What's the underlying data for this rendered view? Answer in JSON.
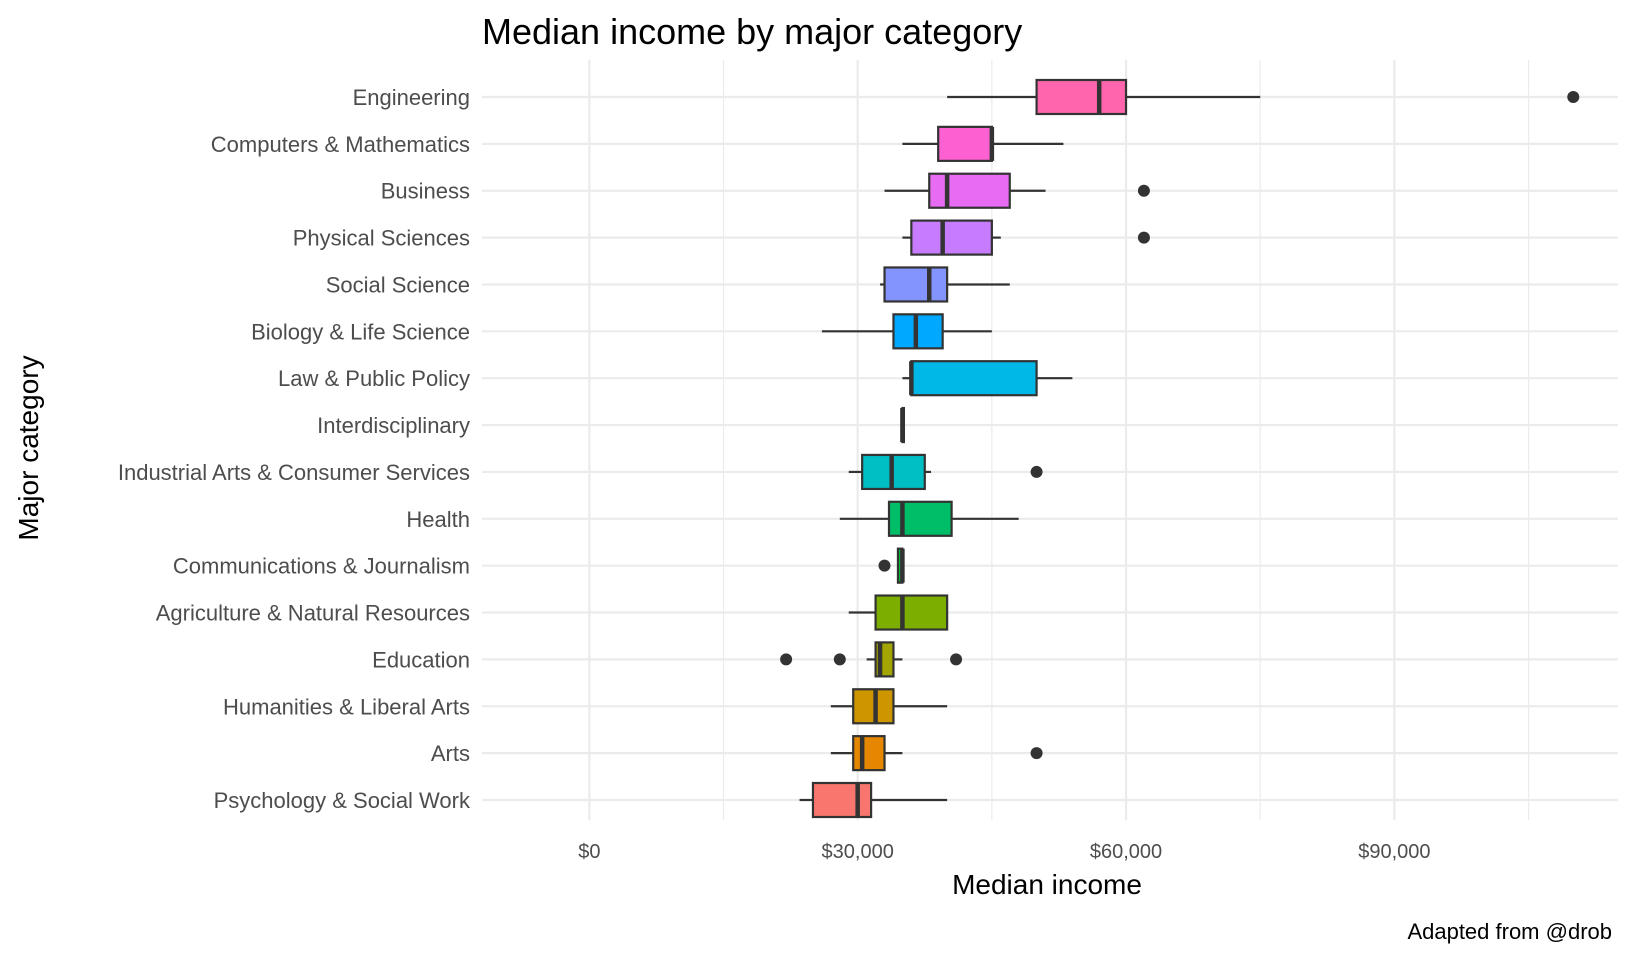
{
  "chart_data": {
    "type": "boxplot",
    "orientation": "horizontal",
    "title": "Median income by major category",
    "xlabel": "Median income",
    "ylabel": "Major category",
    "caption": "Adapted from @drob",
    "xlim": [
      -12000,
      115000
    ],
    "x_ticks": [
      0,
      30000,
      60000,
      90000
    ],
    "x_tick_labels": [
      "$0",
      "$30,000",
      "$60,000",
      "$90,000"
    ],
    "grid": true,
    "legend": "none",
    "categories": [
      {
        "name": "Engineering",
        "color": "#FF65AC",
        "whisker_low": 40000,
        "q1": 50000,
        "median": 57000,
        "q3": 60000,
        "whisker_high": 75000,
        "outliers": [
          110000
        ]
      },
      {
        "name": "Computers & Mathematics",
        "color": "#FD61D1",
        "whisker_low": 35000,
        "q1": 39000,
        "median": 45000,
        "q3": 45000,
        "whisker_high": 53000,
        "outliers": []
      },
      {
        "name": "Business",
        "color": "#E76BF3",
        "whisker_low": 33000,
        "q1": 38000,
        "median": 40000,
        "q3": 47000,
        "whisker_high": 51000,
        "outliers": [
          62000
        ]
      },
      {
        "name": "Physical Sciences",
        "color": "#C77CFF",
        "whisker_low": 35000,
        "q1": 36000,
        "median": 39500,
        "q3": 45000,
        "whisker_high": 46000,
        "outliers": [
          62000
        ]
      },
      {
        "name": "Social Science",
        "color": "#8494FF",
        "whisker_low": 32500,
        "q1": 33000,
        "median": 38000,
        "q3": 40000,
        "whisker_high": 47000,
        "outliers": []
      },
      {
        "name": "Biology & Life Science",
        "color": "#00A9FF",
        "whisker_low": 26000,
        "q1": 34000,
        "median": 36500,
        "q3": 39500,
        "whisker_high": 45000,
        "outliers": []
      },
      {
        "name": "Law & Public Policy",
        "color": "#00B8E7",
        "whisker_low": 35000,
        "q1": 36000,
        "median": 36000,
        "q3": 50000,
        "whisker_high": 54000,
        "outliers": []
      },
      {
        "name": "Interdisciplinary",
        "color": "#00C1A3",
        "whisker_low": 35000,
        "q1": 35000,
        "median": 35000,
        "q3": 35000,
        "whisker_high": 35000,
        "outliers": []
      },
      {
        "name": "Industrial Arts & Consumer Services",
        "color": "#00BFC4",
        "whisker_low": 29000,
        "q1": 30500,
        "median": 33800,
        "q3": 37500,
        "whisker_high": 38200,
        "outliers": [
          50000
        ]
      },
      {
        "name": "Health",
        "color": "#00BE67",
        "whisker_low": 28000,
        "q1": 33500,
        "median": 35000,
        "q3": 40500,
        "whisker_high": 48000,
        "outliers": []
      },
      {
        "name": "Communications & Journalism",
        "color": "#00BA38",
        "whisker_low": 34500,
        "q1": 34500,
        "median": 35000,
        "q3": 35000,
        "whisker_high": 35000,
        "outliers": [
          33000
        ]
      },
      {
        "name": "Agriculture & Natural Resources",
        "color": "#7CAE00",
        "whisker_low": 29000,
        "q1": 32000,
        "median": 35000,
        "q3": 40000,
        "whisker_high": 40000,
        "outliers": []
      },
      {
        "name": "Education",
        "color": "#A3A500",
        "whisker_low": 31000,
        "q1": 32000,
        "median": 32500,
        "q3": 34000,
        "whisker_high": 35000,
        "outliers": [
          22000,
          28000,
          41000
        ]
      },
      {
        "name": "Humanities & Liberal Arts",
        "color": "#CD9600",
        "whisker_low": 27000,
        "q1": 29500,
        "median": 32000,
        "q3": 34000,
        "whisker_high": 40000,
        "outliers": []
      },
      {
        "name": "Arts",
        "color": "#E58700",
        "whisker_low": 27000,
        "q1": 29500,
        "median": 30500,
        "q3": 33000,
        "whisker_high": 35000,
        "outliers": [
          50000
        ]
      },
      {
        "name": "Psychology & Social Work",
        "color": "#F8766D",
        "whisker_low": 23500,
        "q1": 25000,
        "median": 30000,
        "q3": 31500,
        "whisker_high": 40000,
        "outliers": []
      }
    ]
  }
}
